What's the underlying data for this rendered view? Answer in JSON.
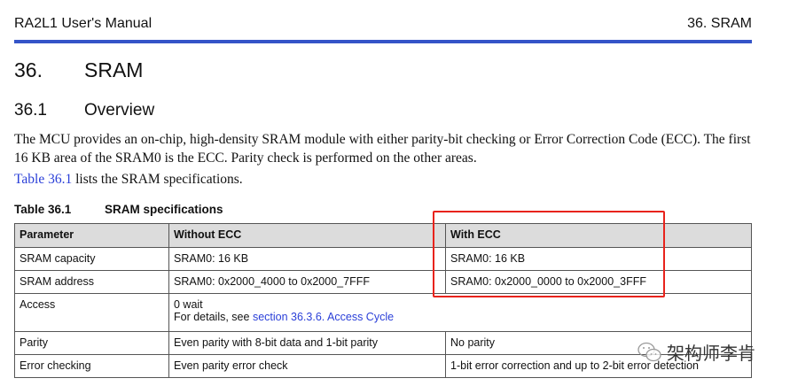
{
  "header": {
    "left": "RA2L1 User's Manual",
    "right": "36. SRAM"
  },
  "heading1": {
    "number": "36.",
    "title": "SRAM"
  },
  "heading2": {
    "number": "36.1",
    "title": "Overview"
  },
  "paragraph1": "The MCU provides an on-chip, high-density SRAM module with either parity-bit checking or Error Correction Code (ECC). The first 16 KB area of the SRAM0 is the ECC. Parity check is performed on the other areas.",
  "paragraph2": {
    "link": "Table 36.1",
    "text": " lists the SRAM specifications."
  },
  "table": {
    "caption_number": "Table 36.1",
    "caption_title": "SRAM specifications",
    "headers": [
      "Parameter",
      "Without ECC",
      "With ECC"
    ],
    "rows": [
      [
        "SRAM capacity",
        "SRAM0: 16 KB",
        "SRAM0: 16 KB"
      ],
      [
        "SRAM address",
        "SRAM0: 0x2000_4000 to 0x2000_7FFF",
        "SRAM0: 0x2000_0000 to 0x2000_3FFF"
      ],
      [
        "Parity",
        "Even parity with 8-bit data and 1-bit parity",
        "No parity"
      ],
      [
        "Error checking",
        "Even parity error check",
        "1-bit error correction and up to 2-bit error detection"
      ]
    ],
    "access": {
      "label": "Access",
      "line1": "0 wait",
      "line2_prefix": "For details, see ",
      "line2_link": "section 36.3.6. Access Cycle"
    }
  },
  "highlight_color": "#e8231c",
  "accent_color": "#3454c8",
  "watermark": {
    "text": "架构师李肯",
    "icon": "wechat-icon"
  }
}
